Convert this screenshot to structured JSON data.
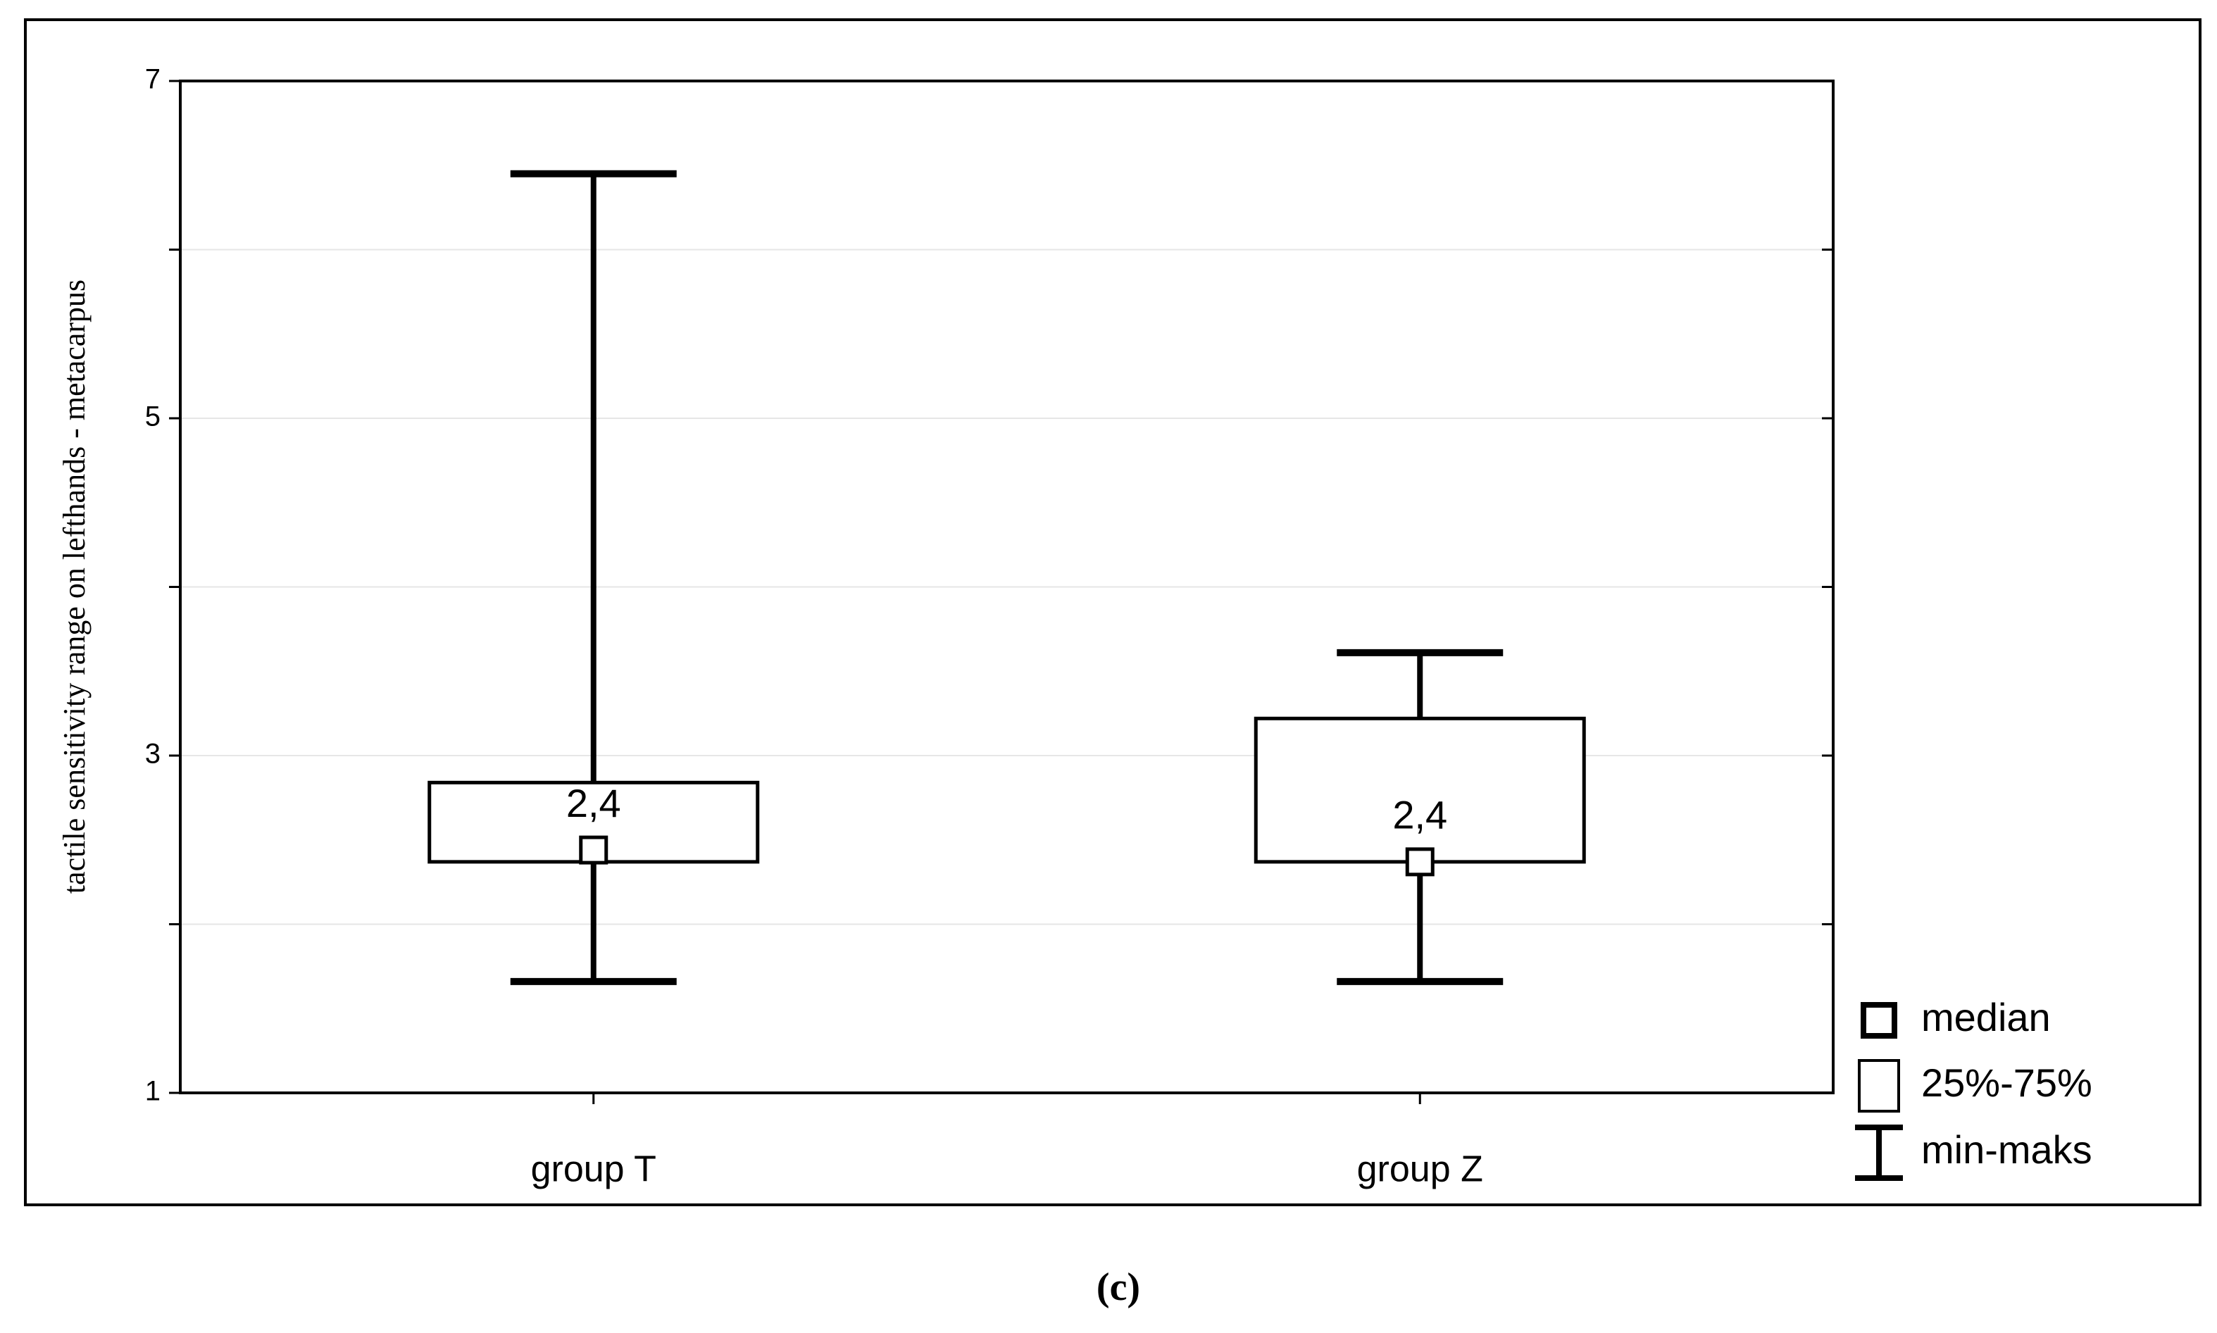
{
  "chart_data": {
    "type": "box",
    "y_label": "tactile sensitivity range on lefthands - metacarpus",
    "caption": "(c)",
    "categories": [
      "group T",
      "group Z"
    ],
    "min": [
      1.66,
      1.66
    ],
    "q1": [
      2.37,
      2.37
    ],
    "median": [
      2.44,
      2.37
    ],
    "q3": [
      2.84,
      3.22
    ],
    "max": [
      6.45,
      3.61
    ],
    "value_labels": [
      "2,4",
      "2,4"
    ],
    "ylim": [
      1,
      7
    ],
    "yticks": [
      1,
      3,
      5,
      7
    ],
    "minor_yticks": [
      2,
      4,
      6
    ],
    "grid": true,
    "color": "#000000",
    "legend": [
      "median",
      "25%-75%",
      "min-maks"
    ],
    "legend_position": "right"
  }
}
